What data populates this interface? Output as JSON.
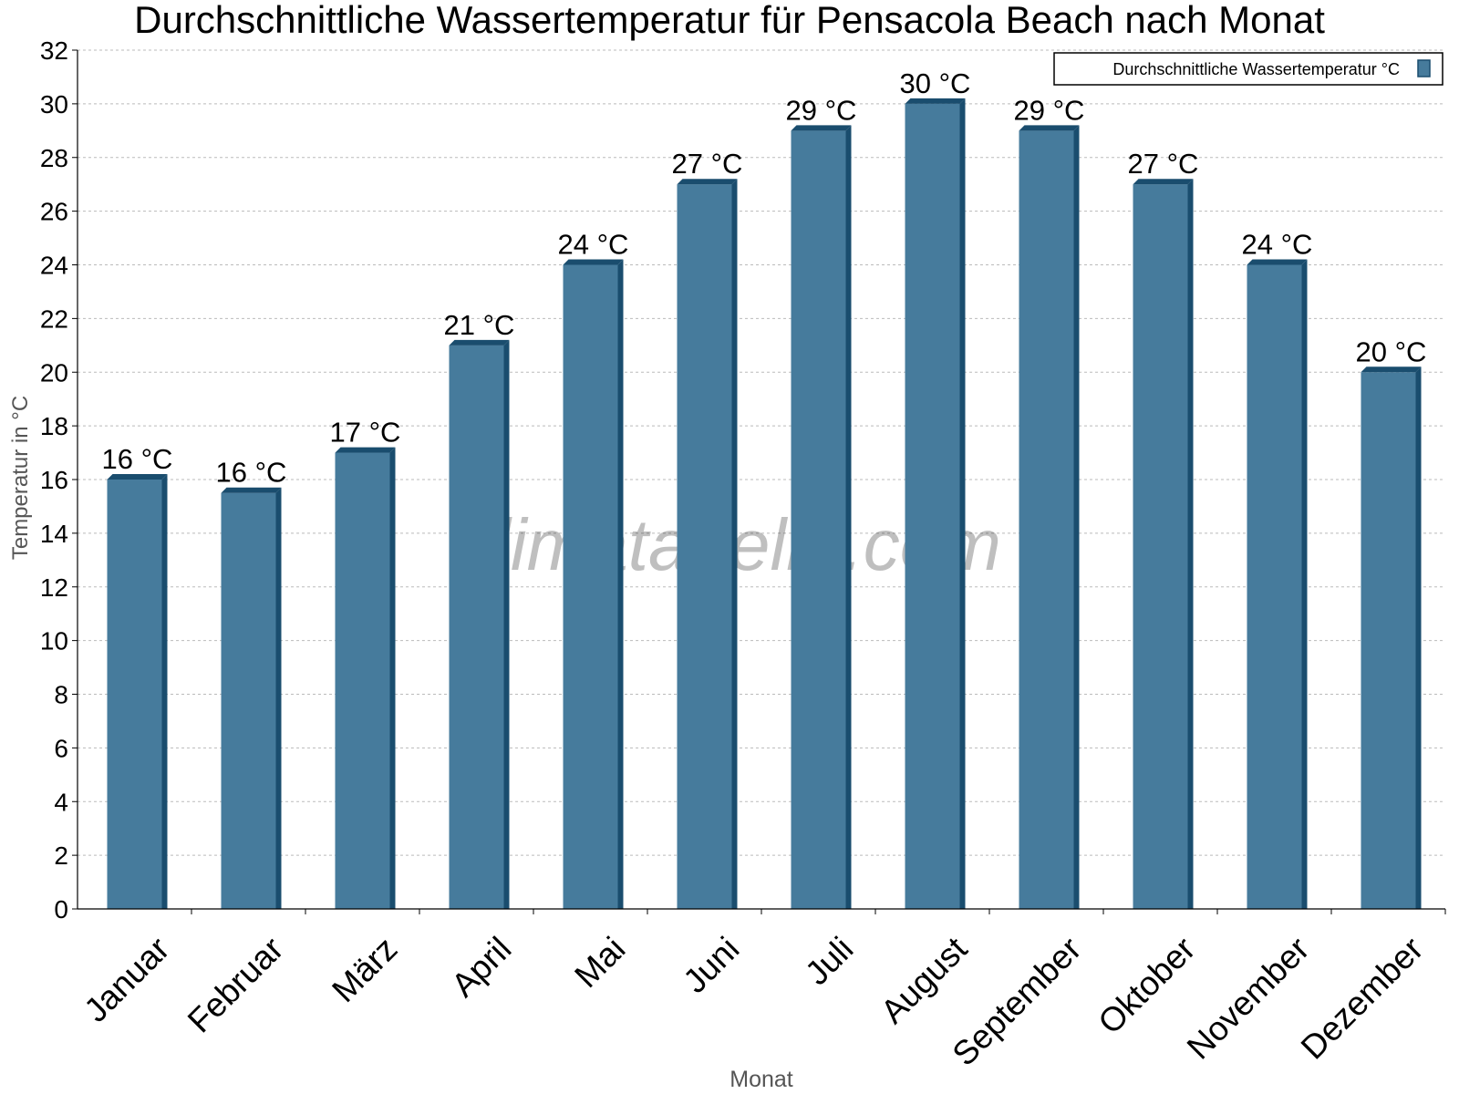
{
  "chart_data": {
    "type": "bar",
    "title": "Durchschnittliche Wassertemperatur für Pensacola Beach nach Monat",
    "xlabel": "Monat",
    "ylabel": "Temperatur in °C",
    "ylim": [
      0,
      32
    ],
    "ytick_step": 2,
    "grid": true,
    "legend_position": "top-right",
    "watermark": "klimatabelle.com",
    "categories": [
      "Januar",
      "Februar",
      "März",
      "April",
      "Mai",
      "Juni",
      "Juli",
      "August",
      "September",
      "Oktober",
      "November",
      "Dezember"
    ],
    "series": [
      {
        "name": "Durchschnittliche Wassertemperatur °C",
        "values": [
          16,
          15.5,
          17,
          21,
          24,
          27,
          29,
          30,
          29,
          27,
          24,
          20
        ],
        "labels": [
          "16 °C",
          "16 °C",
          "17 °C",
          "21 °C",
          "24 °C",
          "27 °C",
          "29 °C",
          "30 °C",
          "29 °C",
          "27 °C",
          "24 °C",
          "20 °C"
        ],
        "color": "#467b9c",
        "edge_color": "#1a4d6e"
      }
    ]
  }
}
